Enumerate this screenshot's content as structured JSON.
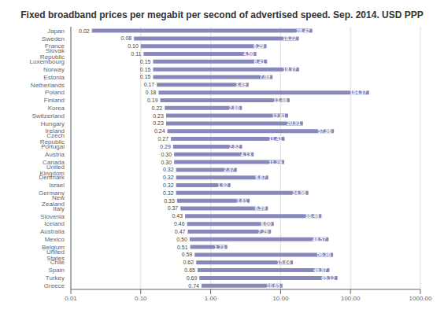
{
  "chart_data": {
    "type": "bar",
    "title": "Fixed broadband prices per megabit per second of advertised speed. Sep. 2014. USD PPP",
    "orientation": "horizontal",
    "log": "x",
    "grid": true,
    "data_labels": true,
    "color": "#8888bb",
    "categories": [
      "Japan",
      "Sweden",
      "France",
      "Slovak Republic",
      "Luxembourg",
      "Norway",
      "Estonia",
      "Netherlands",
      "Poland",
      "Finland",
      "Korea",
      "Switzerland",
      "Hungary",
      "Ireland",
      "Czech Republic",
      "Portugal",
      "Austria",
      "Canada",
      "United Kingdom",
      "Denmark",
      "Israel",
      "Germany",
      "New Zealand",
      "Italy",
      "Slovenia",
      "Iceland",
      "Australia",
      "Mexico",
      "Belgium",
      "United States",
      "Chile",
      "Spain",
      "Turkey",
      "Greece"
    ],
    "values": [
      [
        0.02,
        28.47
      ],
      [
        0.08,
        18.22
      ],
      [
        0.1,
        6.29
      ],
      [
        0.11,
        4.5
      ],
      [
        0.15,
        6.41
      ],
      [
        0.15,
        18.37
      ],
      [
        0.15,
        7.69
      ],
      [
        0.17,
        3.49
      ],
      [
        0.18,
        184.37
      ],
      [
        0.19,
        13.46
      ],
      [
        0.22,
        2.8
      ],
      [
        0.23,
        12.81
      ],
      [
        0.23,
        20.91
      ],
      [
        0.24,
        57.96
      ],
      [
        0.27,
        11.41
      ],
      [
        0.29,
        2.82
      ],
      [
        0.3,
        4.13
      ],
      [
        0.3,
        11.29
      ],
      [
        0.32,
        2.37
      ],
      [
        0.32,
        6.67
      ],
      [
        0.32,
        1.92
      ],
      [
        0.32,
        24.98
      ],
      [
        0.33,
        3.61
      ],
      [
        0.37,
        6.59
      ],
      [
        0.43,
        38.46
      ],
      [
        0.46,
        8.0
      ],
      [
        0.47,
        7.29
      ],
      [
        0.5,
        48.57
      ],
      [
        0.51,
        1.73
      ],
      [
        0.59,
        56.36
      ],
      [
        0.62,
        15.04
      ],
      [
        0.65,
        49.97
      ],
      [
        0.69,
        65.12
      ],
      [
        0.74,
        10.65
      ]
    ],
    "value_labels": [
      [
        "0.02",
        "28.47"
      ],
      [
        "0.08",
        "18.22"
      ],
      [
        "0.10",
        "6.29"
      ],
      [
        "0.11",
        "4.50"
      ],
      [
        "0.15",
        "6.41"
      ],
      [
        "0.15",
        "18.37"
      ],
      [
        "0.15",
        "7.69"
      ],
      [
        "0.17",
        "3.49"
      ],
      [
        "0.18",
        "184.37"
      ],
      [
        "0.19",
        "13.46"
      ],
      [
        "0.22",
        "2.80"
      ],
      [
        "0.23",
        "12.81"
      ],
      [
        "0.23",
        "20.91"
      ],
      [
        "0.24",
        "57.96"
      ],
      [
        "0.27",
        "11.41"
      ],
      [
        "0.29",
        "2.82"
      ],
      [
        "0.30",
        "4.13"
      ],
      [
        "0.30",
        "11.29"
      ],
      [
        "0.32",
        "2.37"
      ],
      [
        "0.32",
        "6.67"
      ],
      [
        "0.32",
        "1.92"
      ],
      [
        "0.32",
        "24.98"
      ],
      [
        "0.33",
        "3.61"
      ],
      [
        "0.37",
        "6.59"
      ],
      [
        "0.43",
        "38.46"
      ],
      [
        "0.46",
        "8.00"
      ],
      [
        "0.47",
        "7.29"
      ],
      [
        "0.50",
        "48.57"
      ],
      [
        "0.51",
        "1.73"
      ],
      [
        "0.59",
        "56.36"
      ],
      [
        "0.62",
        "15.04"
      ],
      [
        "0.65",
        "49.97"
      ],
      [
        "0.69",
        "65.12"
      ],
      [
        "0.74",
        "10.65"
      ]
    ],
    "xlim": [
      0.01,
      1000
    ],
    "xticks": [
      0.01,
      {
        "value": 0.1,
        "label": "0.10"
      },
      {
        "value": 1,
        "label": "1.00"
      },
      {
        "value": 10,
        "label": "10.00"
      },
      {
        "value": 100,
        "label": "100.00"
      },
      {
        "value": 1000,
        "label": "1000.00"
      }
    ]
  }
}
